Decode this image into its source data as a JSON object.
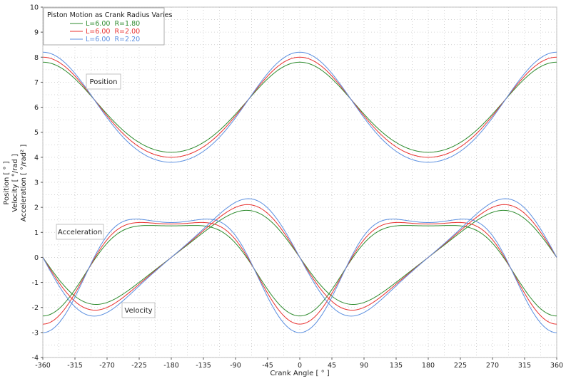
{
  "chart_data": {
    "type": "line",
    "title": "Piston Motion as Crank Radius Varies",
    "xlabel": "Crank Angle [ ° ]",
    "ylabel_lines": [
      "Position [ ° ]",
      "Velocity [ °/rad ]",
      "Acceleration [ °/rad² ]"
    ],
    "xlim": [
      -360,
      360
    ],
    "ylim": [
      -4,
      10
    ],
    "x_ticks": [
      -360,
      -315,
      -270,
      -225,
      -180,
      -135,
      -90,
      -45,
      0,
      45,
      90,
      135,
      180,
      225,
      270,
      315,
      360
    ],
    "y_ticks": [
      -4,
      -3,
      -2,
      -1,
      0,
      1,
      2,
      3,
      4,
      5,
      6,
      7,
      8,
      9,
      10
    ],
    "grid": true,
    "legend_position": "top-left",
    "connecting_rod_length": 6.0,
    "series": [
      {
        "name": "L=6.00  R=1.80",
        "L": 6.0,
        "R": 1.8,
        "color": "#2e8b2e"
      },
      {
        "name": "L=6.00  R=2.00",
        "L": 6.0,
        "R": 2.0,
        "color": "#e8312f"
      },
      {
        "name": "L=6.00  R=2.20",
        "L": 6.0,
        "R": 2.2,
        "color": "#5b8fe0"
      }
    ],
    "annotations": [
      {
        "id": "position",
        "text": "Position",
        "x": -250,
        "y": 7.0
      },
      {
        "id": "acceleration",
        "text": "Acceleration",
        "x": -303,
        "y": 1.03
      },
      {
        "id": "velocity",
        "text": "Velocity",
        "x": -210,
        "y": -2.07
      }
    ],
    "sample_curves_reference": {
      "position_R2_at_x": {
        "0": 8.0,
        "180": 4.0,
        "-360": 8.0
      },
      "velocity_peak_R2": {
        "x": -70,
        "y": 2.1
      },
      "acceleration_at_0_R2": -2.7
    }
  }
}
